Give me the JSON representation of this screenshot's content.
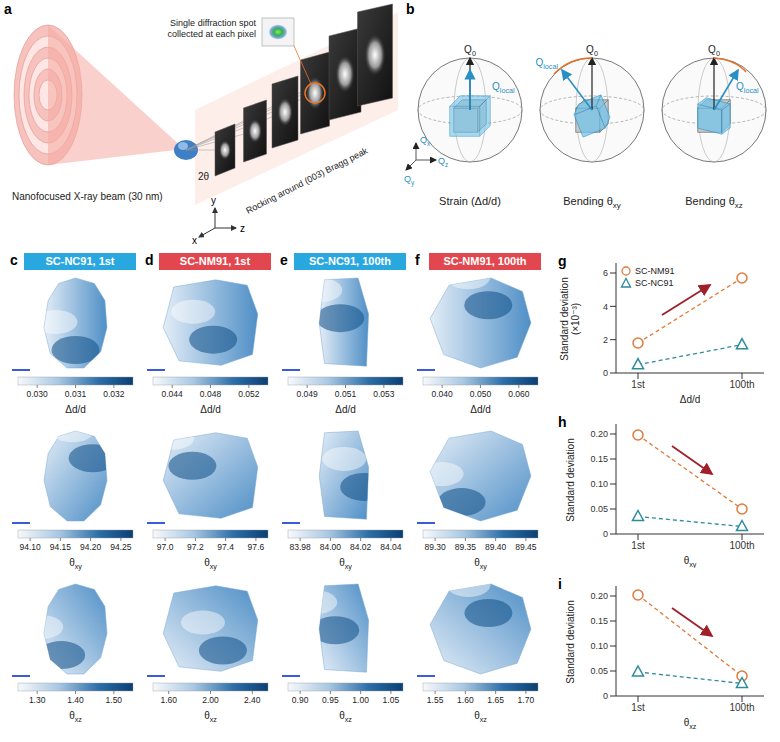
{
  "panels": {
    "a": {
      "letter": "a",
      "beam_label": "Nanofocused X-ray beam (30 nm)",
      "spot_label": "Single diffraction spot collected at each pixel",
      "rocking_label": "Rocking around (003) Bragg peak",
      "angle_label": "2θ",
      "axes": [
        "x",
        "y",
        "z"
      ]
    },
    "b": {
      "letter": "b",
      "q0": "Q0",
      "qlocal": "Qlocal",
      "axes": [
        "Qx",
        "Qy",
        "Qz"
      ],
      "captions": [
        "Strain (Δd/d)",
        "Bending θxy",
        "Bending θxz"
      ]
    },
    "maps": [
      {
        "letter": "c",
        "title": "SC-NC91, 1st",
        "color": "#29a8e0",
        "colorbars": [
          {
            "label": "Δd/d",
            "range": [
              0.0295,
              0.0325
            ],
            "ticks": [
              {
                "value": 0.03,
                "label": "0.030"
              },
              0.031,
              0.032
            ]
          },
          {
            "label": "θxy",
            "range": [
              94.08,
              94.27
            ],
            "ticks": [
              {
                "value": 94.1,
                "label": "94.10"
              },
              94.15,
              {
                "value": 94.2,
                "label": "94.20"
              },
              94.25
            ]
          },
          {
            "label": "θxz",
            "range": [
              1.25,
              1.55
            ],
            "ticks": [
              {
                "value": 1.3,
                "label": "1.30"
              },
              {
                "value": 1.4,
                "label": "1.40"
              },
              {
                "value": 1.5,
                "label": "1.50"
              }
            ]
          }
        ]
      },
      {
        "letter": "d",
        "title": "SC-NM91, 1st",
        "color": "#e2474f",
        "colorbars": [
          {
            "label": "Δd/d",
            "range": [
              0.042,
              0.054
            ],
            "ticks": [
              0.044,
              0.048,
              0.052
            ]
          },
          {
            "label": "θxy",
            "range": [
              96.92,
              97.68
            ],
            "ticks": [
              {
                "value": 97,
                "label": "97.0"
              },
              97.2,
              97.4,
              97.6
            ]
          },
          {
            "label": "θxz",
            "range": [
              1.45,
              2.55
            ],
            "ticks": [
              {
                "value": 1.6,
                "label": "1.60"
              },
              {
                "value": 2,
                "label": "2.00"
              },
              {
                "value": 2.4,
                "label": "2.40"
              }
            ]
          }
        ]
      },
      {
        "letter": "e",
        "title": "SC-NC91, 100th",
        "color": "#29a8e0",
        "colorbars": [
          {
            "label": "Δd/d",
            "range": [
              0.048,
              0.054
            ],
            "ticks": [
              0.049,
              0.051,
              0.053
            ]
          },
          {
            "label": "θxy",
            "range": [
              83.972,
              84.048
            ],
            "ticks": [
              83.98,
              {
                "value": 84,
                "label": "84.00"
              },
              84.02,
              84.04
            ]
          },
          {
            "label": "θxz",
            "range": [
              0.88,
              1.07
            ],
            "ticks": [
              {
                "value": 0.9,
                "label": "0.90"
              },
              0.95,
              {
                "value": 1,
                "label": "1.00"
              },
              1.05
            ]
          }
        ]
      },
      {
        "letter": "f",
        "title": "SC-NM91, 100th",
        "color": "#e2474f",
        "colorbars": [
          {
            "label": "Δd/d",
            "range": [
              0.035,
              0.065
            ],
            "ticks": [
              {
                "value": 0.04,
                "label": "0.040"
              },
              {
                "value": 0.05,
                "label": "0.050"
              },
              {
                "value": 0.06,
                "label": "0.060"
              }
            ]
          },
          {
            "label": "θxy",
            "range": [
              89.28,
              89.47
            ],
            "ticks": [
              {
                "value": 89.3,
                "label": "89.30"
              },
              89.35,
              {
                "value": 89.4,
                "label": "89.40"
              },
              89.45
            ]
          },
          {
            "label": "θxz",
            "range": [
              1.53,
              1.72
            ],
            "ticks": [
              1.55,
              {
                "value": 1.6,
                "label": "1.60"
              },
              1.65,
              {
                "value": 1.7,
                "label": "1.70"
              }
            ]
          }
        ]
      }
    ]
  },
  "chart_data": [
    {
      "panel": "g",
      "type": "line",
      "x_label": "Δd/d",
      "y_label": "Standard deviation (×10⁻³)",
      "categories": [
        "1st",
        "100th"
      ],
      "series": [
        {
          "name": "SC-NM91",
          "color": "#e07b39",
          "marker": "circle",
          "line_style": "dashed",
          "values": [
            1.8,
            5.7
          ]
        },
        {
          "name": "SC-NC91",
          "color": "#2b8c9b",
          "marker": "triangle",
          "line_style": "dashed",
          "values": [
            0.5,
            1.7
          ]
        }
      ],
      "ylim": [
        0,
        6.6
      ],
      "yticks": [
        0,
        2,
        4,
        6
      ],
      "legend": "top-left"
    },
    {
      "panel": "h",
      "type": "line",
      "x_label": "θxy",
      "y_label": "Standard deviation",
      "categories": [
        "1st",
        "100th"
      ],
      "series": [
        {
          "name": "SC-NM91",
          "color": "#e07b39",
          "marker": "circle",
          "line_style": "dashed",
          "values": [
            0.198,
            0.05
          ]
        },
        {
          "name": "SC-NC91",
          "color": "#2b8c9b",
          "marker": "triangle",
          "line_style": "dashed",
          "values": [
            0.035,
            0.015
          ]
        }
      ],
      "ylim": [
        0,
        0.22
      ],
      "yticks": [
        0,
        0.05,
        {
          "value": 0.1,
          "label": "0.10"
        },
        0.15,
        {
          "value": 0.2,
          "label": "0.20"
        }
      ]
    },
    {
      "panel": "i",
      "type": "line",
      "x_label": "θxz",
      "y_label": "Standard deviation",
      "categories": [
        "1st",
        "100th"
      ],
      "series": [
        {
          "name": "SC-NM91",
          "color": "#e07b39",
          "marker": "circle",
          "line_style": "dashed",
          "values": [
            0.202,
            0.04
          ]
        },
        {
          "name": "SC-NC91",
          "color": "#2b8c9b",
          "marker": "triangle",
          "line_style": "dashed",
          "values": [
            0.048,
            0.025
          ]
        }
      ],
      "ylim": [
        0,
        0.22
      ],
      "yticks": [
        0,
        0.05,
        {
          "value": 0.1,
          "label": "0.10"
        },
        0.15,
        {
          "value": 0.2,
          "label": "0.20"
        }
      ]
    }
  ]
}
